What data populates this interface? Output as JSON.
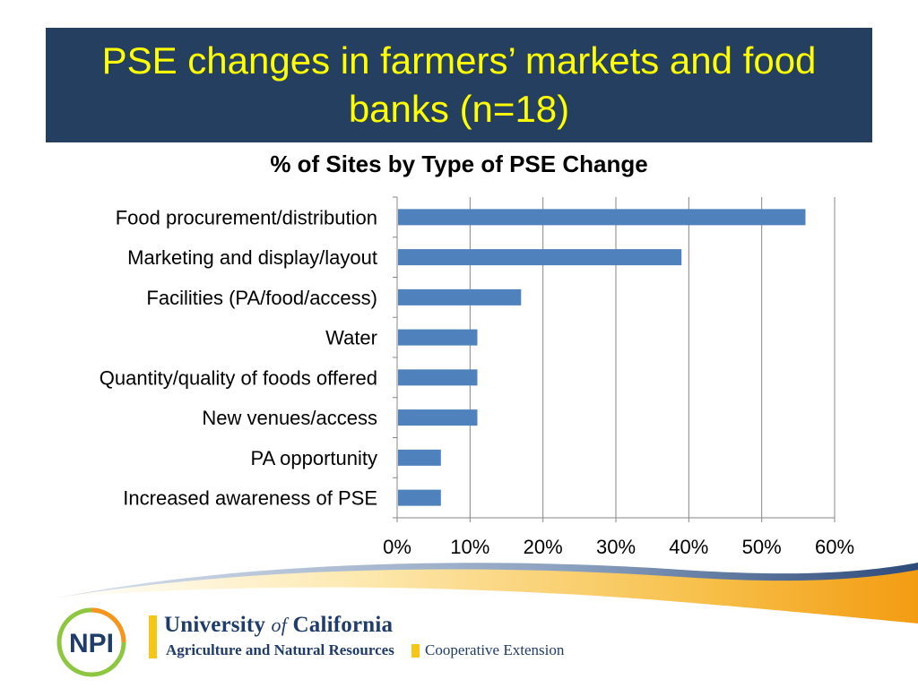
{
  "slide": {
    "title": "PSE changes in farmers’ markets and food banks (n=18)"
  },
  "chart_data": {
    "type": "bar",
    "orientation": "horizontal",
    "title": "% of Sites by Type of PSE Change",
    "categories": [
      "Food procurement/distribution",
      "Marketing and display/layout",
      "Facilities (PA/food/access)",
      "Water",
      "Quantity/quality of foods offered",
      "New venues/access",
      "PA opportunity",
      "Increased awareness of PSE"
    ],
    "values": [
      56,
      39,
      17,
      11,
      11,
      11,
      6,
      6
    ],
    "xlim": [
      0,
      60
    ],
    "xticks": [
      0,
      10,
      20,
      30,
      40,
      50,
      60
    ],
    "xtick_labels": [
      "0%",
      "10%",
      "20%",
      "30%",
      "40%",
      "50%",
      "60%"
    ],
    "xlabel": "",
    "ylabel": "",
    "grid": true,
    "bar_color": "#4f81bd"
  },
  "footer": {
    "logo_text": "NPI",
    "uc_pre": "University ",
    "uc_of": "of",
    "uc_post": " California",
    "uc_sub": "Agriculture and Natural Resources",
    "ce": "Cooperative Extension",
    "colors": {
      "navy": "#1f3c6b",
      "gold": "#f5c518",
      "green": "#8dc63f",
      "orange": "#f7941d"
    }
  }
}
